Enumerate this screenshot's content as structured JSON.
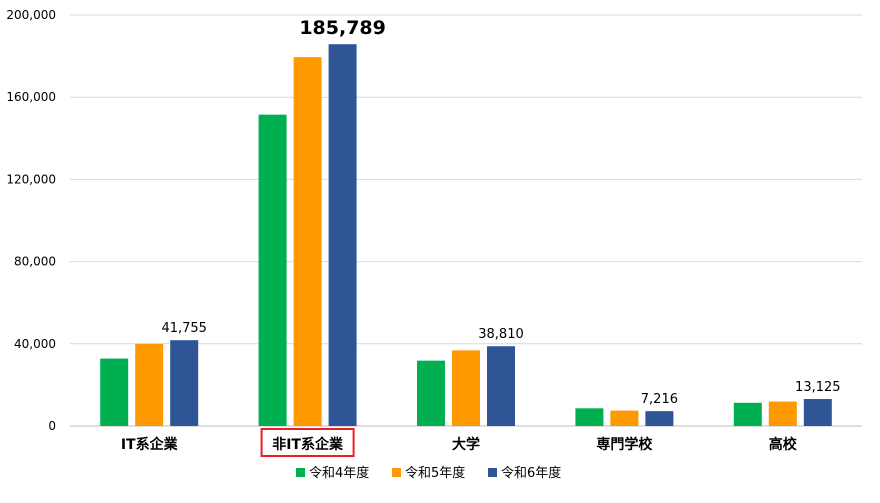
{
  "chart_data": {
    "type": "bar",
    "title": "",
    "xlabel": "",
    "ylabel": "",
    "ylim": [
      0,
      200000
    ],
    "yticks": [
      0,
      40000,
      80000,
      120000,
      160000,
      200000
    ],
    "ytick_labels": [
      "0",
      "40,000",
      "80,000",
      "120,000",
      "160,000",
      "200,000"
    ],
    "grid": true,
    "legend_position": "bottom",
    "categories": [
      "IT系企業",
      "非IT系企業",
      "大学",
      "専門学校",
      "高校"
    ],
    "highlighted_category": "非IT系企業",
    "highlight_color": "#e8202a",
    "series": [
      {
        "name": "令和4年度",
        "color": "#00b050",
        "values": [
          32800,
          151500,
          31800,
          8600,
          11300
        ]
      },
      {
        "name": "令和5年度",
        "color": "#ff9900",
        "values": [
          40000,
          179500,
          36800,
          7500,
          11900
        ]
      },
      {
        "name": "令和6年度",
        "color": "#2f5597",
        "values": [
          41755,
          185789,
          38810,
          7216,
          13125
        ]
      }
    ],
    "data_labels": [
      {
        "category_index": 0,
        "series_index": 2,
        "text": "41,755",
        "emphasis": false
      },
      {
        "category_index": 1,
        "series_index": 2,
        "text": "185,789",
        "emphasis": true
      },
      {
        "category_index": 2,
        "series_index": 2,
        "text": "38,810",
        "emphasis": false
      },
      {
        "category_index": 3,
        "series_index": 2,
        "text": "7,216",
        "emphasis": false
      },
      {
        "category_index": 4,
        "series_index": 2,
        "text": "13,125",
        "emphasis": false
      }
    ]
  }
}
